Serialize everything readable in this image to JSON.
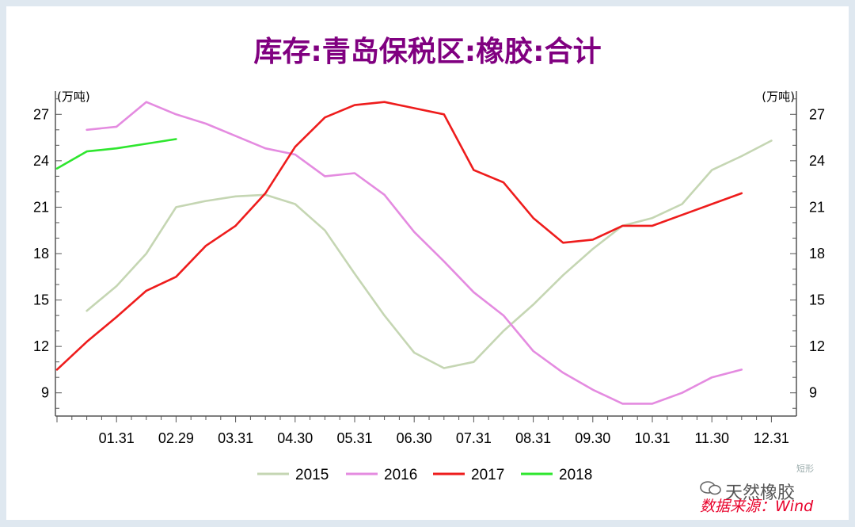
{
  "title": "库存:青岛保税区:橡胶:合计",
  "source_note": "数据来源：Wind",
  "watermark": "天然橡胶",
  "corner_mark": "短形",
  "colors": {
    "title": "#800080",
    "s2015": "#c5d6b3",
    "s2016": "#e48be0",
    "s2017": "#ee1c1c",
    "s2018": "#2ee62e",
    "source": "#e8002a"
  },
  "chart_data": {
    "type": "line",
    "title": "库存:青岛保税区:橡胶:合计",
    "unit_left": "(万吨)",
    "unit_right": "(万吨)",
    "x_labels": [
      "01.31",
      "02.29",
      "03.31",
      "04.30",
      "05.31",
      "06.30",
      "07.31",
      "08.31",
      "09.30",
      "10.31",
      "11.30",
      "12.31"
    ],
    "ylim": [
      7.5,
      28.5
    ],
    "y_ticks": [
      9,
      12,
      15,
      18,
      21,
      24,
      27
    ],
    "grid": false,
    "legend": "bottom",
    "series": [
      {
        "name": "2015",
        "color": "#c5d6b3",
        "x": [
          0.5,
          1.0,
          1.5,
          2.0,
          2.5,
          3.0,
          3.5,
          4.0,
          4.5,
          5.0,
          5.5,
          6.0,
          6.5,
          7.0,
          7.5,
          8.0,
          8.5,
          9.0,
          9.5,
          10.0,
          10.5,
          11.0,
          11.5,
          12.0
        ],
        "y": [
          14.3,
          15.9,
          18.0,
          21.0,
          21.4,
          21.7,
          21.8,
          21.2,
          19.5,
          16.7,
          14.0,
          11.6,
          10.6,
          11.0,
          13.0,
          14.7,
          16.6,
          18.3,
          19.8,
          20.3,
          21.2,
          23.4,
          24.3,
          25.3
        ]
      },
      {
        "name": "2016",
        "color": "#e48be0",
        "x": [
          0.5,
          1.0,
          1.5,
          2.0,
          2.5,
          3.0,
          3.5,
          4.0,
          4.5,
          5.0,
          5.5,
          6.0,
          6.5,
          7.0,
          7.5,
          8.0,
          8.5,
          9.0,
          9.5,
          10.0,
          10.5,
          11.0,
          11.5
        ],
        "y": [
          26.0,
          26.2,
          27.8,
          27.0,
          26.4,
          25.6,
          24.8,
          24.4,
          23.0,
          23.2,
          21.8,
          19.4,
          17.5,
          15.5,
          14.0,
          11.7,
          10.3,
          9.2,
          8.3,
          8.3,
          9.0,
          10.0,
          10.5
        ]
      },
      {
        "name": "2017",
        "color": "#ee1c1c",
        "x": [
          0.0,
          0.5,
          1.0,
          1.5,
          2.0,
          2.5,
          3.0,
          3.5,
          4.0,
          4.5,
          5.0,
          5.5,
          6.0,
          6.5,
          7.0,
          7.5,
          8.0,
          8.5,
          9.0,
          9.5,
          10.0,
          10.5,
          11.0,
          11.5
        ],
        "y": [
          10.5,
          12.3,
          13.9,
          15.6,
          16.5,
          18.5,
          19.8,
          21.9,
          24.9,
          26.8,
          27.6,
          27.8,
          27.4,
          27.0,
          23.4,
          22.6,
          20.3,
          18.7,
          18.9,
          19.8,
          19.8,
          20.5,
          21.2,
          21.9
        ]
      },
      {
        "name": "2018",
        "color": "#2ee62e",
        "x": [
          0.0,
          0.5,
          1.0,
          1.5,
          2.0
        ],
        "y": [
          23.5,
          24.6,
          24.8,
          25.1,
          25.4
        ]
      }
    ]
  }
}
